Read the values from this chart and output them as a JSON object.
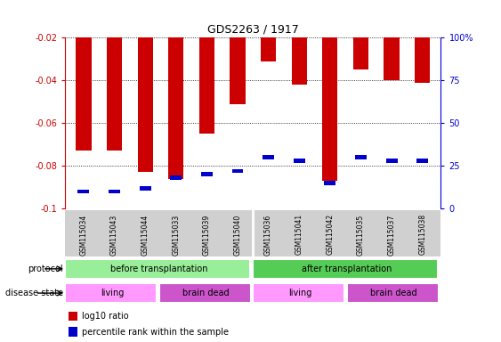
{
  "title": "GDS2263 / 1917",
  "samples": [
    "GSM115034",
    "GSM115043",
    "GSM115044",
    "GSM115033",
    "GSM115039",
    "GSM115040",
    "GSM115036",
    "GSM115041",
    "GSM115042",
    "GSM115035",
    "GSM115037",
    "GSM115038"
  ],
  "log10_ratio": [
    -0.073,
    -0.073,
    -0.083,
    -0.086,
    -0.065,
    -0.051,
    -0.031,
    -0.042,
    -0.087,
    -0.035,
    -0.04,
    -0.041
  ],
  "percentile_rank": [
    10,
    10,
    12,
    18,
    20,
    22,
    30,
    28,
    15,
    30,
    28,
    28
  ],
  "ylim_left": [
    -0.1,
    -0.02
  ],
  "yticks_left": [
    -0.1,
    -0.08,
    -0.06,
    -0.04,
    -0.02
  ],
  "yticks_right": [
    0,
    25,
    50,
    75,
    100
  ],
  "bar_color": "#cc0000",
  "marker_color": "#0000cc",
  "background_color": "#ffffff",
  "protocol_groups": [
    {
      "label": "before transplantation",
      "start": 0,
      "end": 5,
      "color": "#99ee99"
    },
    {
      "label": "after transplantation",
      "start": 6,
      "end": 11,
      "color": "#55cc55"
    }
  ],
  "disease_groups": [
    {
      "label": "living",
      "start": 0,
      "end": 2,
      "color": "#ff99ff"
    },
    {
      "label": "brain dead",
      "start": 3,
      "end": 5,
      "color": "#cc55cc"
    },
    {
      "label": "living",
      "start": 6,
      "end": 8,
      "color": "#ff99ff"
    },
    {
      "label": "brain dead",
      "start": 9,
      "end": 11,
      "color": "#cc55cc"
    }
  ],
  "legend_items": [
    {
      "label": "log10 ratio",
      "color": "#cc0000"
    },
    {
      "label": "percentile rank within the sample",
      "color": "#0000cc"
    }
  ],
  "protocol_label": "protocol",
  "disease_label": "disease state",
  "left_axis_color": "#cc0000",
  "right_axis_color": "#0000cc"
}
